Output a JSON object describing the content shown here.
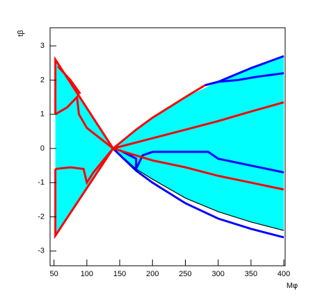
{
  "chart_data": {
    "type": "line",
    "xlabel": "Mφ",
    "ylabel": "tβ",
    "xlim": [
      44,
      402
    ],
    "ylim": [
      -3.43,
      3.53
    ],
    "xticks": [
      50,
      100,
      150,
      200,
      250,
      300,
      350,
      400
    ],
    "yticks": [
      -3,
      -2,
      -1,
      0,
      1,
      2,
      3
    ],
    "series": [
      {
        "color": "#00ffff",
        "fill": "#00ffff",
        "x": [
          52,
          52,
          140,
          175,
          200,
          250,
          300,
          350,
          400,
          400,
          350,
          300,
          250,
          200,
          175,
          140,
          52
        ],
        "values": [
          -2.55,
          2.55,
          0,
          0.55,
          0.9,
          1.5,
          1.95,
          2.35,
          2.7,
          -2.4,
          -2.15,
          -1.85,
          -1.45,
          -0.9,
          -0.6,
          0,
          -2.55
        ]
      },
      {
        "color": "#000000",
        "x": [
          140,
          175,
          200,
          250,
          300,
          350,
          400
        ],
        "values": [
          0,
          -0.6,
          -0.9,
          -1.45,
          -1.85,
          -2.15,
          -2.4
        ]
      },
      {
        "color": "#0000ff",
        "x": [
          140,
          175,
          200,
          250,
          300,
          350,
          400
        ],
        "values": [
          0,
          -0.65,
          -1.0,
          -1.6,
          -2.05,
          -2.35,
          -2.6
        ]
      },
      {
        "color": "#0000ff",
        "x": [
          150,
          175,
          175,
          185,
          200,
          250,
          285,
          300,
          350,
          400
        ],
        "values": [
          -0.05,
          -0.3,
          -0.6,
          -0.2,
          -0.1,
          -0.1,
          -0.1,
          -0.3,
          -0.5,
          -0.7
        ]
      },
      {
        "color": "#0000ff",
        "x": [
          280,
          300,
          350,
          400
        ],
        "values": [
          1.85,
          1.95,
          2.35,
          2.7
        ]
      },
      {
        "color": "#0000ff",
        "x": [
          280,
          300,
          330,
          360,
          400
        ],
        "values": [
          1.85,
          1.95,
          2.0,
          2.1,
          2.2
        ]
      },
      {
        "color": "#ff0000",
        "x": [
          140,
          175,
          200,
          250,
          280
        ],
        "values": [
          0,
          0.55,
          0.9,
          1.5,
          1.85
        ]
      },
      {
        "color": "#ff0000",
        "x": [
          140,
          200,
          250,
          300,
          350,
          400
        ],
        "values": [
          0,
          0.3,
          0.55,
          0.8,
          1.08,
          1.35
        ]
      },
      {
        "color": "#ff0000",
        "x": [
          140,
          200,
          250,
          300,
          350,
          400
        ],
        "values": [
          0,
          -0.35,
          -0.55,
          -0.8,
          -1.0,
          -1.2
        ]
      },
      {
        "color": "#ff0000",
        "x": [
          140,
          52,
          52
        ],
        "values": [
          0,
          2.6,
          1.0
        ]
      },
      {
        "color": "#ff0000",
        "x": [
          52,
          70,
          85,
          88,
          100,
          120,
          140
        ],
        "values": [
          1.0,
          1.2,
          1.5,
          1.0,
          0.6,
          0.3,
          0
        ]
      },
      {
        "color": "#ff0000",
        "x": [
          56,
          75,
          90
        ],
        "values": [
          2.4,
          2.0,
          1.6
        ]
      },
      {
        "color": "#ff0000",
        "x": [
          140,
          52,
          52
        ],
        "values": [
          0,
          -2.55,
          -0.6
        ]
      },
      {
        "color": "#ff0000",
        "x": [
          52,
          75,
          95,
          100,
          110,
          140
        ],
        "values": [
          -0.6,
          -0.55,
          -0.6,
          -1.0,
          -0.7,
          0
        ]
      }
    ]
  }
}
